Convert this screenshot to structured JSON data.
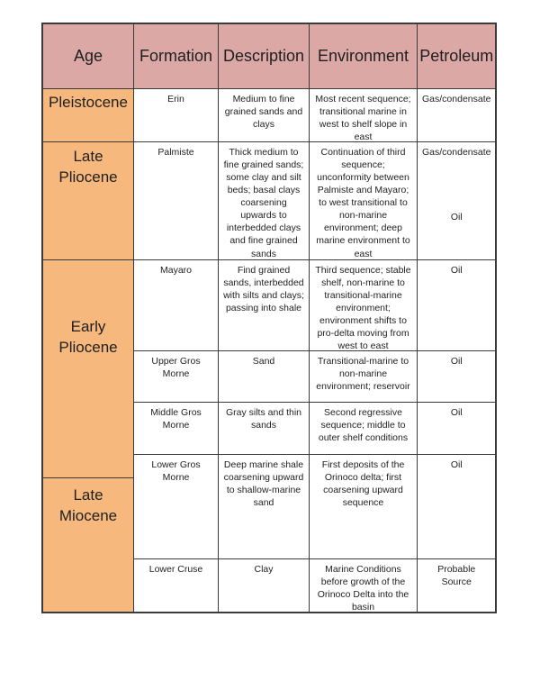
{
  "table": {
    "headers": {
      "age": "Age",
      "formation": "Formation",
      "description": "Description",
      "environment": "Environment",
      "petroleum": "Petroleum"
    },
    "ages": [
      {
        "label": "Pleistocene"
      },
      {
        "label": "Late Pliocene"
      },
      {
        "label": "Early Pliocene"
      },
      {
        "label": "Late Miocene"
      }
    ],
    "rows": [
      {
        "formation": "Erin",
        "description": "Medium to fine grained sands and clays",
        "environment": "Most recent sequence; transitional marine in west to shelf slope in east",
        "petroleum": "Gas/condensate"
      },
      {
        "formation": "Palmiste",
        "description": "Thick medium to fine grained sands; some clay and silt beds; basal clays coarsening upwards to interbedded clays and fine grained sands",
        "environment": "Continuation of third sequence; unconformity between Palmiste and Mayaro; to west transitional to non-marine environment; deep marine environment to east",
        "petroleum": "Gas/condensate",
        "petroleum_secondary": "Oil"
      },
      {
        "formation": "Mayaro",
        "description": "Find grained sands, interbedded with silts and clays; passing into shale",
        "environment": "Third sequence; stable shelf, non-marine to transitional-marine environment; environment shifts to pro-delta moving from west to east",
        "petroleum": "Oil"
      },
      {
        "formation": "Upper Gros Morne",
        "description": "Sand",
        "environment": "Transitional-marine to non-marine environment; reservoir",
        "petroleum": "Oil"
      },
      {
        "formation": "Middle Gros Morne",
        "description": "Gray silts and thin sands",
        "environment": "Second regressive sequence; middle to outer shelf conditions",
        "petroleum": "Oil"
      },
      {
        "formation": "Lower Gros Morne",
        "description": "Deep marine shale coarsening upward to shallow-marine sand",
        "environment": "First deposits of the Orinoco delta; first coarsening upward sequence",
        "petroleum": "Oil"
      },
      {
        "formation": "Lower Cruse",
        "description": "Clay",
        "environment": "Marine Conditions before growth of the Orinoco Delta into the basin",
        "petroleum": "Probable Source"
      }
    ],
    "colors": {
      "header_bg": "#dba8a6",
      "age_bg": "#f6b87c",
      "border": "#3b3b3b",
      "text": "#1f1f1f"
    }
  }
}
